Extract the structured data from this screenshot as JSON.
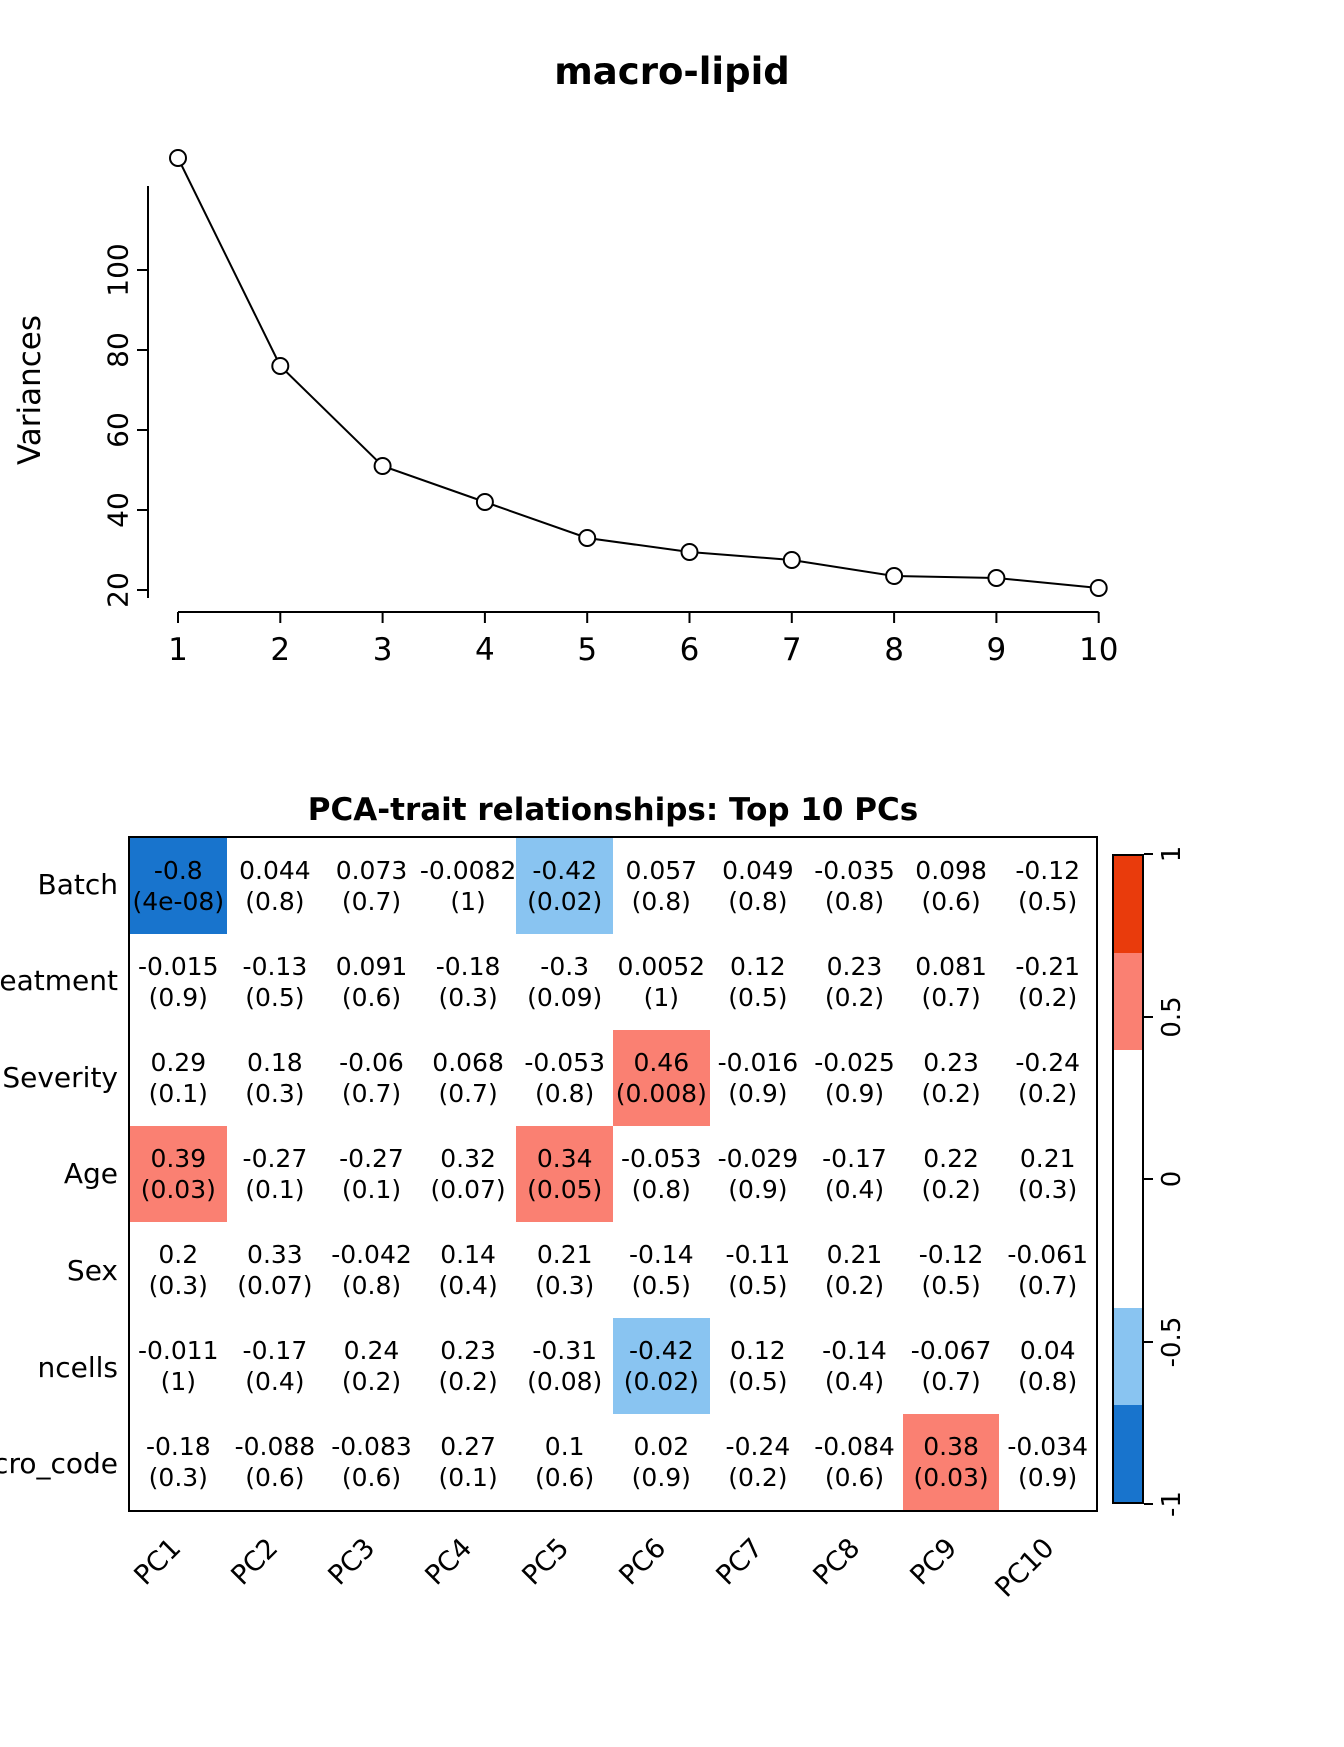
{
  "palette": {
    "blue": "#1874CD",
    "lightblue": "#89C4F1",
    "salmon": "#FA8072",
    "red": "#E93B0C",
    "white": "#FFFFFF"
  },
  "chart_data": [
    {
      "type": "line",
      "title": "macro-lipid",
      "xlabel": "",
      "ylabel": "Variances",
      "x": [
        1,
        2,
        3,
        4,
        5,
        6,
        7,
        8,
        9,
        10
      ],
      "values": [
        128,
        76,
        51,
        42,
        33,
        29.5,
        27.5,
        23.5,
        23,
        20.5
      ],
      "xticks": [
        "1",
        "2",
        "3",
        "4",
        "5",
        "6",
        "7",
        "8",
        "9",
        "10"
      ],
      "yticks": [
        20,
        40,
        60,
        80,
        100
      ],
      "ylim": [
        20,
        130
      ],
      "marker": "open-circle",
      "grid": false
    },
    {
      "type": "heatmap",
      "title": "PCA-trait relationships: Top 10 PCs",
      "rows": [
        "Batch",
        "Treatment",
        "Severity",
        "Age",
        "Sex",
        "ncells",
        "Micro_code"
      ],
      "columns": [
        "PC1",
        "PC2",
        "PC3",
        "PC4",
        "PC5",
        "PC6",
        "PC7",
        "PC8",
        "PC9",
        "PC10"
      ],
      "cells": [
        [
          {
            "v": "-0.8",
            "p": "(4e-08)",
            "bg": "blue"
          },
          {
            "v": "0.044",
            "p": "(0.8)"
          },
          {
            "v": "0.073",
            "p": "(0.7)"
          },
          {
            "v": "-0.0082",
            "p": "(1)"
          },
          {
            "v": "-0.42",
            "p": "(0.02)",
            "bg": "lightblue"
          },
          {
            "v": "0.057",
            "p": "(0.8)"
          },
          {
            "v": "0.049",
            "p": "(0.8)"
          },
          {
            "v": "-0.035",
            "p": "(0.8)"
          },
          {
            "v": "0.098",
            "p": "(0.6)"
          },
          {
            "v": "-0.12",
            "p": "(0.5)"
          }
        ],
        [
          {
            "v": "-0.015",
            "p": "(0.9)"
          },
          {
            "v": "-0.13",
            "p": "(0.5)"
          },
          {
            "v": "0.091",
            "p": "(0.6)"
          },
          {
            "v": "-0.18",
            "p": "(0.3)"
          },
          {
            "v": "-0.3",
            "p": "(0.09)"
          },
          {
            "v": "0.0052",
            "p": "(1)"
          },
          {
            "v": "0.12",
            "p": "(0.5)"
          },
          {
            "v": "0.23",
            "p": "(0.2)"
          },
          {
            "v": "0.081",
            "p": "(0.7)"
          },
          {
            "v": "-0.21",
            "p": "(0.2)"
          }
        ],
        [
          {
            "v": "0.29",
            "p": "(0.1)"
          },
          {
            "v": "0.18",
            "p": "(0.3)"
          },
          {
            "v": "-0.06",
            "p": "(0.7)"
          },
          {
            "v": "0.068",
            "p": "(0.7)"
          },
          {
            "v": "-0.053",
            "p": "(0.8)"
          },
          {
            "v": "0.46",
            "p": "(0.008)",
            "bg": "salmon"
          },
          {
            "v": "-0.016",
            "p": "(0.9)"
          },
          {
            "v": "-0.025",
            "p": "(0.9)"
          },
          {
            "v": "0.23",
            "p": "(0.2)"
          },
          {
            "v": "-0.24",
            "p": "(0.2)"
          }
        ],
        [
          {
            "v": "0.39",
            "p": "(0.03)",
            "bg": "salmon"
          },
          {
            "v": "-0.27",
            "p": "(0.1)"
          },
          {
            "v": "-0.27",
            "p": "(0.1)"
          },
          {
            "v": "0.32",
            "p": "(0.07)"
          },
          {
            "v": "0.34",
            "p": "(0.05)",
            "bg": "salmon"
          },
          {
            "v": "-0.053",
            "p": "(0.8)"
          },
          {
            "v": "-0.029",
            "p": "(0.9)"
          },
          {
            "v": "-0.17",
            "p": "(0.4)"
          },
          {
            "v": "0.22",
            "p": "(0.2)"
          },
          {
            "v": "0.21",
            "p": "(0.3)"
          }
        ],
        [
          {
            "v": "0.2",
            "p": "(0.3)"
          },
          {
            "v": "0.33",
            "p": "(0.07)"
          },
          {
            "v": "-0.042",
            "p": "(0.8)"
          },
          {
            "v": "0.14",
            "p": "(0.4)"
          },
          {
            "v": "0.21",
            "p": "(0.3)"
          },
          {
            "v": "-0.14",
            "p": "(0.5)"
          },
          {
            "v": "-0.11",
            "p": "(0.5)"
          },
          {
            "v": "0.21",
            "p": "(0.2)"
          },
          {
            "v": "-0.12",
            "p": "(0.5)"
          },
          {
            "v": "-0.061",
            "p": "(0.7)"
          }
        ],
        [
          {
            "v": "-0.011",
            "p": "(1)"
          },
          {
            "v": "-0.17",
            "p": "(0.4)"
          },
          {
            "v": "0.24",
            "p": "(0.2)"
          },
          {
            "v": "0.23",
            "p": "(0.2)"
          },
          {
            "v": "-0.31",
            "p": "(0.08)"
          },
          {
            "v": "-0.42",
            "p": "(0.02)",
            "bg": "lightblue"
          },
          {
            "v": "0.12",
            "p": "(0.5)"
          },
          {
            "v": "-0.14",
            "p": "(0.4)"
          },
          {
            "v": "-0.067",
            "p": "(0.7)"
          },
          {
            "v": "0.04",
            "p": "(0.8)"
          }
        ],
        [
          {
            "v": "-0.18",
            "p": "(0.3)"
          },
          {
            "v": "-0.088",
            "p": "(0.6)"
          },
          {
            "v": "-0.083",
            "p": "(0.6)"
          },
          {
            "v": "0.27",
            "p": "(0.1)"
          },
          {
            "v": "0.1",
            "p": "(0.6)"
          },
          {
            "v": "0.02",
            "p": "(0.9)"
          },
          {
            "v": "-0.24",
            "p": "(0.2)"
          },
          {
            "v": "-0.084",
            "p": "(0.6)"
          },
          {
            "v": "0.38",
            "p": "(0.03)",
            "bg": "salmon"
          },
          {
            "v": "-0.034",
            "p": "(0.9)"
          }
        ]
      ],
      "colorbar": {
        "range": [
          -1,
          1
        ],
        "ticks": [
          "1",
          "0.5",
          "0",
          "-0.5",
          "-1"
        ],
        "segments": [
          {
            "color": "red",
            "span": [
              0.7,
              1
            ]
          },
          {
            "color": "salmon",
            "span": [
              0.4,
              0.7
            ]
          },
          {
            "color": "white",
            "span": [
              -0.4,
              0.4
            ]
          },
          {
            "color": "lightblue",
            "span": [
              -0.7,
              -0.4
            ]
          },
          {
            "color": "blue",
            "span": [
              -1,
              -0.7
            ]
          }
        ],
        "legend_position": "right"
      }
    }
  ]
}
